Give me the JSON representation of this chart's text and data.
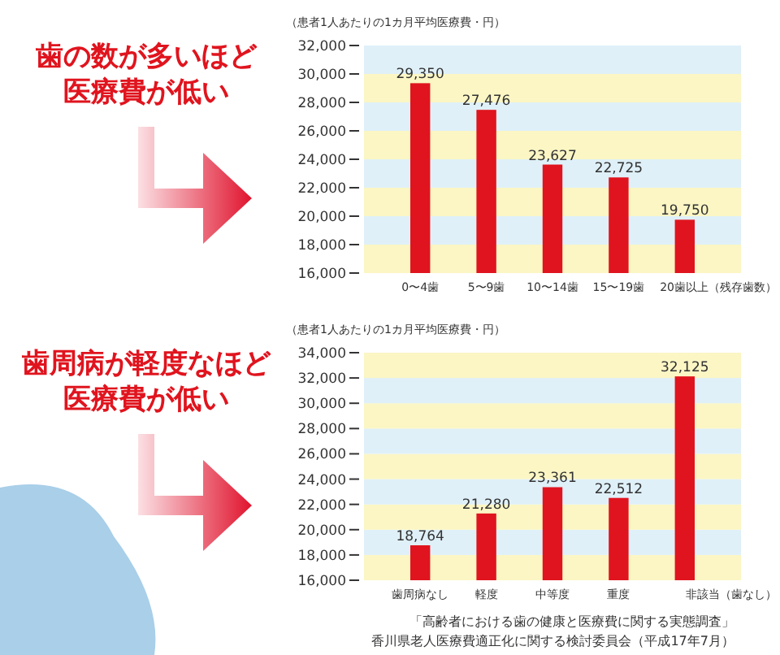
{
  "chart_data": [
    {
      "type": "bar",
      "title": "歯の数が多いほど",
      "subtitle": "医療費が低い",
      "ylabel": "（患者1人あたりの1カ月平均医療費・円）",
      "categories": [
        "0〜4歯",
        "5〜9歯",
        "10〜14歯",
        "15〜19歯",
        "20歯以上（残存歯数）"
      ],
      "values": [
        29350,
        27476,
        23627,
        22725,
        19750
      ],
      "value_labels": [
        "29,350",
        "27,476",
        "23,627",
        "22,725",
        "19,750"
      ],
      "color": "#e0141e",
      "ylim": [
        16000,
        32000
      ],
      "yticks": [
        {
          "value": 16000,
          "label": "16,000"
        },
        {
          "value": 18000,
          "label": "18,000"
        },
        {
          "value": 20000,
          "label": "20,000"
        },
        {
          "value": 22000,
          "label": "22,000"
        },
        {
          "value": 24000,
          "label": "24,000"
        },
        {
          "value": 26000,
          "label": "26,000"
        },
        {
          "value": 28000,
          "label": "28,000"
        },
        {
          "value": 30000,
          "label": "30,000"
        },
        {
          "value": 32000,
          "label": "32,000"
        }
      ],
      "bands": [
        {
          "axis": "y",
          "from": 16000,
          "to": 18000,
          "color": "#fbf6c4"
        },
        {
          "axis": "y",
          "from": 18000,
          "to": 20000,
          "color": "#dff0f8"
        },
        {
          "axis": "y",
          "from": 20000,
          "to": 22000,
          "color": "#fbf6c4"
        },
        {
          "axis": "y",
          "from": 22000,
          "to": 24000,
          "color": "#dff0f8"
        },
        {
          "axis": "y",
          "from": 24000,
          "to": 26000,
          "color": "#fbf6c4"
        },
        {
          "axis": "y",
          "from": 26000,
          "to": 28000,
          "color": "#dff0f8"
        },
        {
          "axis": "y",
          "from": 28000,
          "to": 30000,
          "color": "#fbf6c4"
        },
        {
          "axis": "y",
          "from": 30000,
          "to": 32000,
          "color": "#dff0f8"
        }
      ]
    },
    {
      "type": "bar",
      "title": "歯周病が軽度なほど",
      "subtitle": "医療費が低い",
      "ylabel": "（患者1人あたりの1カ月平均医療費・円）",
      "categories": [
        "歯周病なし",
        "軽度",
        "中等度",
        "重度",
        "非該当（歯なし）"
      ],
      "values": [
        18764,
        21280,
        23361,
        22512,
        32125
      ],
      "value_labels": [
        "18,764",
        "21,280",
        "23,361",
        "22,512",
        "32,125"
      ],
      "color": "#e0141e",
      "ylim": [
        16000,
        34000
      ],
      "yticks": [
        {
          "value": 16000,
          "label": "16,000"
        },
        {
          "value": 18000,
          "label": "18,000"
        },
        {
          "value": 20000,
          "label": "20,000"
        },
        {
          "value": 22000,
          "label": "22,000"
        },
        {
          "value": 24000,
          "label": "24,000"
        },
        {
          "value": 26000,
          "label": "26,000"
        },
        {
          "value": 28000,
          "label": "28,000"
        },
        {
          "value": 30000,
          "label": "30,000"
        },
        {
          "value": 32000,
          "label": "32,000"
        },
        {
          "value": 34000,
          "label": "34,000"
        }
      ],
      "bands": [
        {
          "axis": "y",
          "from": 16000,
          "to": 18000,
          "color": "#fbf6c4"
        },
        {
          "axis": "y",
          "from": 18000,
          "to": 20000,
          "color": "#dff0f8"
        },
        {
          "axis": "y",
          "from": 20000,
          "to": 22000,
          "color": "#fbf6c4"
        },
        {
          "axis": "y",
          "from": 22000,
          "to": 24000,
          "color": "#dff0f8"
        },
        {
          "axis": "y",
          "from": 24000,
          "to": 26000,
          "color": "#fbf6c4"
        },
        {
          "axis": "y",
          "from": 26000,
          "to": 28000,
          "color": "#dff0f8"
        },
        {
          "axis": "y",
          "from": 28000,
          "to": 30000,
          "color": "#fbf6c4"
        },
        {
          "axis": "y",
          "from": 30000,
          "to": 32000,
          "color": "#dff0f8"
        },
        {
          "axis": "y",
          "from": 32000,
          "to": 34000,
          "color": "#fbf6c4"
        }
      ],
      "annotations": [
        "「高齢者における歯の健康と医療費に関する実態調査」",
        "香川県老人医療費適正化に関する検討委員会（平成17年7月）"
      ]
    }
  ]
}
